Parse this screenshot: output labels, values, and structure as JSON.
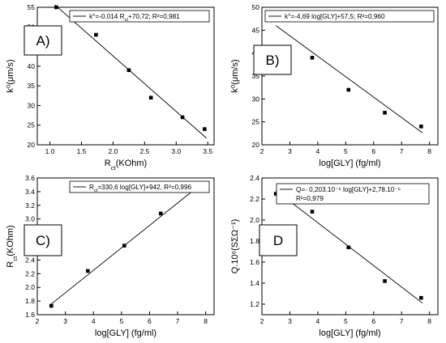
{
  "chart_data": [
    {
      "type": "scatter",
      "panel_label": "A)",
      "xlabel": "R_ct(KOhm)",
      "ylabel": "k⁰(μm/s)",
      "xlim": [
        0.8,
        3.6
      ],
      "ylim": [
        20,
        55
      ],
      "xticks": [
        "1.0",
        "1.5",
        "2.0",
        "2.5",
        "3.0",
        "3.5"
      ],
      "yticks": [
        "20",
        "25",
        "30",
        "35",
        "40",
        "45",
        "50",
        "55"
      ],
      "points": [
        [
          1.1,
          55
        ],
        [
          1.73,
          48
        ],
        [
          2.25,
          39
        ],
        [
          2.6,
          32
        ],
        [
          3.1,
          27
        ],
        [
          3.45,
          24
        ]
      ],
      "fit_line": [
        [
          1.08,
          55.6
        ],
        [
          3.48,
          21.7
        ]
      ],
      "legend": {
        "text": "k°=-0.014 R_ct+70,72; R²=0,981",
        "position": "top-right"
      }
    },
    {
      "type": "scatter",
      "panel_label": "B)",
      "xlabel": "log[GLY] (fg/ml)",
      "ylabel": "k⁰(μm/s)",
      "xlim": [
        2.0,
        8.3
      ],
      "ylim": [
        20,
        50
      ],
      "xticks": [
        "2",
        "3",
        "4",
        "5",
        "6",
        "7",
        "8"
      ],
      "yticks": [
        "20",
        "25",
        "30",
        "35",
        "40",
        "45",
        "50"
      ],
      "points": [
        [
          2.5,
          48
        ],
        [
          3.8,
          39
        ],
        [
          5.1,
          32
        ],
        [
          6.4,
          27
        ],
        [
          7.7,
          24
        ]
      ],
      "fit_line": [
        [
          2.5,
          46.0
        ],
        [
          7.75,
          22.6
        ]
      ],
      "legend": {
        "text": "k°=-4,69 log[GLY]+57,5; R²=0,960",
        "position": "top-right"
      }
    },
    {
      "type": "scatter",
      "panel_label": "C)",
      "xlabel": "log[GLY] (fg/ml)",
      "ylabel": "R_ct(KOhm)",
      "xlim": [
        2.0,
        8.3
      ],
      "ylim": [
        1.6,
        3.6
      ],
      "xticks": [
        "2",
        "3",
        "4",
        "5",
        "6",
        "7",
        "8"
      ],
      "yticks": [
        "1.6",
        "1.8",
        "2.0",
        "2.2",
        "2.4",
        "2.6",
        "2.8",
        "3.0",
        "3.2",
        "3.4",
        "3.6"
      ],
      "points": [
        [
          2.5,
          1.73
        ],
        [
          3.8,
          2.24
        ],
        [
          5.1,
          2.61
        ],
        [
          6.4,
          3.08
        ],
        [
          7.7,
          3.46
        ]
      ],
      "fit_line": [
        [
          2.45,
          1.74
        ],
        [
          7.75,
          3.48
        ]
      ],
      "legend": {
        "text": "R_ct=330,6 log[GLY]+942, R²=0,996",
        "position": "top-right"
      }
    },
    {
      "type": "scatter",
      "panel_label": "D",
      "xlabel": "log[GLY] (fg/ml)",
      "ylabel": "Q.10⁶(SΣΩ⁻¹)",
      "xlim": [
        2.0,
        8.3
      ],
      "ylim": [
        1.1,
        2.4
      ],
      "xticks": [
        "2",
        "3",
        "4",
        "5",
        "6",
        "7",
        "8"
      ],
      "yticks": [
        "1.2",
        "1.4",
        "1.6",
        "1.8",
        "2.0",
        "2.2",
        "2.4"
      ],
      "points": [
        [
          2.5,
          2.25
        ],
        [
          3.8,
          2.08
        ],
        [
          5.1,
          1.74
        ],
        [
          6.4,
          1.42
        ],
        [
          7.7,
          1.26
        ]
      ],
      "fit_line": [
        [
          2.5,
          2.28
        ],
        [
          7.75,
          1.21
        ]
      ],
      "legend": {
        "lines": [
          "Q=- 0,203.10⁻⁶ log[GLY]+2,78.10⁻⁶",
          "R²=0,979"
        ],
        "position": "top-right"
      }
    }
  ]
}
